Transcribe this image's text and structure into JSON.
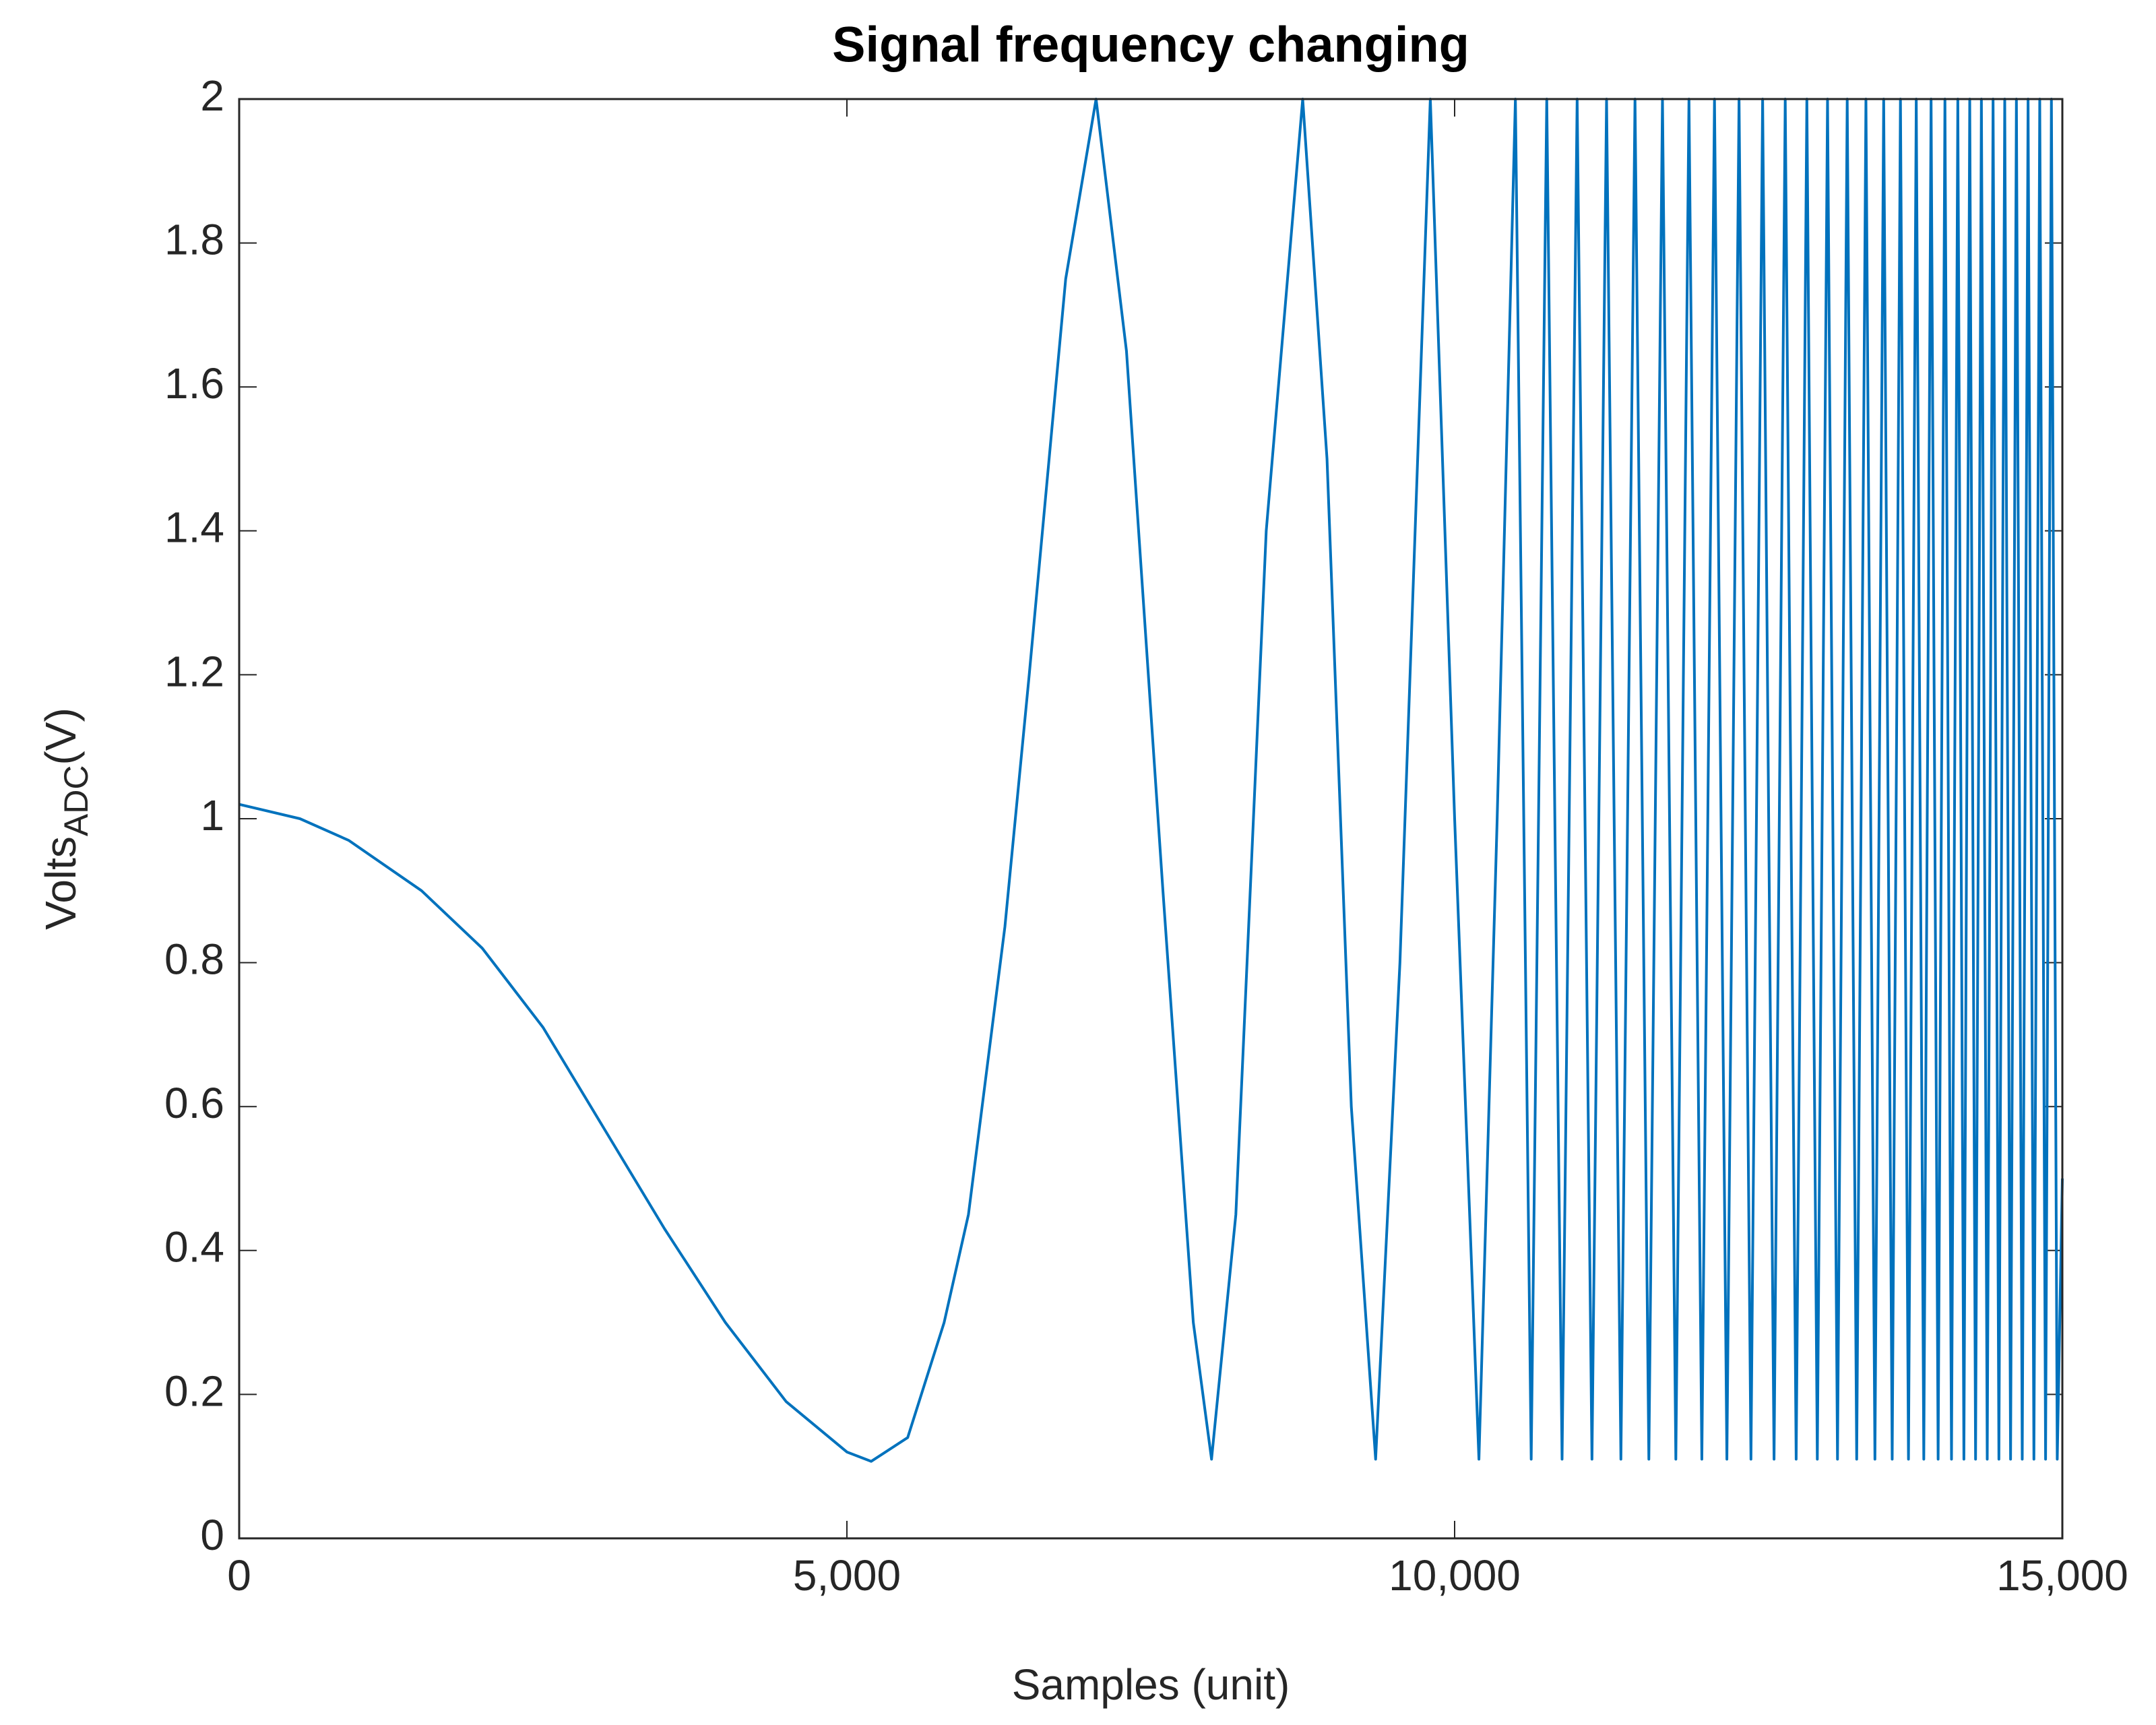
{
  "chart_data": {
    "type": "line",
    "title": "Signal frequency changing",
    "x_label": "Samples (unit)",
    "y_label": {
      "text": "Volts",
      "subscript": "ADC",
      "suffix": "(V)"
    },
    "xlim": [
      0,
      15000
    ],
    "xticks": [
      0,
      {
        "value": 5000,
        "label": "5,000"
      },
      {
        "value": 10000,
        "label": "10,000"
      },
      {
        "value": 15000,
        "label": "15,000"
      }
    ],
    "ylim": [
      0,
      2
    ],
    "yticks": [
      0,
      0.2,
      0.4,
      0.6,
      0.8,
      1,
      1.2,
      1.4,
      1.6,
      1.8,
      2
    ],
    "grid": false,
    "series": [
      {
        "color": "#0072bd",
        "x": [
          0,
          500,
          900,
          1500,
          2000,
          2500,
          3000,
          3500,
          4000,
          4500,
          5000,
          5200,
          5500,
          5800,
          6000,
          6300,
          6500,
          6800,
          7050,
          7300,
          7600,
          7850,
          8000,
          8200,
          8450,
          8750,
          8950,
          9150,
          9350,
          9550,
          9800,
          10000,
          10200,
          10350,
          10500,
          10630,
          10758,
          10884,
          11008,
          11130,
          11250,
          11368,
          11484,
          11598,
          11710,
          11820,
          11928,
          12034,
          12138,
          12240,
          12340,
          12438,
          12534,
          12628,
          12720,
          12810,
          12898,
          12984,
          13068,
          13150,
          13230,
          13308,
          13384,
          13458,
          13530,
          13600,
          13668,
          13734,
          13798,
          13860,
          13920,
          13978,
          14034,
          14088,
          14140,
          14190,
          14238,
          14286,
          14334,
          14382,
          14430,
          14478,
          14526,
          14574,
          14622,
          14670,
          14718,
          14766,
          14814,
          14862,
          14910,
          14958,
          15000
        ],
        "values": [
          1.02,
          1.0,
          0.97,
          0.9,
          0.82,
          0.71,
          0.57,
          0.43,
          0.3,
          0.19,
          0.12,
          0.107,
          0.14,
          0.3,
          0.45,
          0.85,
          1.2,
          1.75,
          2,
          1.65,
          0.9,
          0.3,
          0.11,
          0.45,
          1.4,
          2,
          1.5,
          0.6,
          0.11,
          0.8,
          2,
          1.0,
          0.11,
          1.0,
          2,
          0.11,
          2,
          0.11,
          2,
          0.11,
          2,
          0.11,
          2,
          0.11,
          2,
          0.11,
          2,
          0.11,
          2,
          0.11,
          2,
          0.11,
          2,
          0.11,
          2,
          0.11,
          2,
          0.11,
          2,
          0.11,
          2,
          0.11,
          2,
          0.11,
          2,
          0.11,
          2,
          0.11,
          2,
          0.11,
          2,
          0.11,
          2,
          0.11,
          2,
          0.11,
          2,
          0.11,
          2,
          0.11,
          2,
          0.11,
          2,
          0.11,
          2,
          0.11,
          2,
          0.11,
          2,
          0.11,
          2,
          0.11,
          0.5
        ]
      }
    ]
  }
}
